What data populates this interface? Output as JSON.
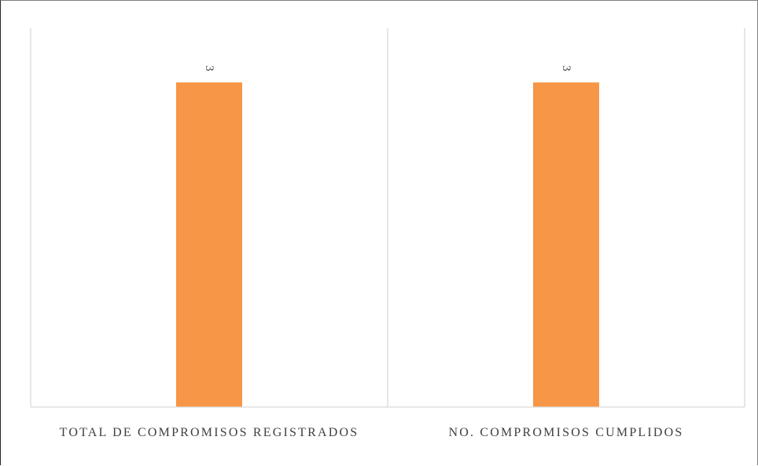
{
  "chart_data": {
    "type": "bar",
    "title": "",
    "xlabel": "",
    "ylabel": "",
    "categories": [
      "TOTAL DE COMPROMISOS REGISTRADOS",
      "NO. COMPROMISOS CUMPLIDOS"
    ],
    "values": [
      3,
      3
    ],
    "data_labels": [
      "3",
      "3"
    ],
    "ylim": [
      0,
      3.5
    ],
    "grid": "vertical separators only",
    "legend": "none",
    "bar_color": "#F79646"
  }
}
